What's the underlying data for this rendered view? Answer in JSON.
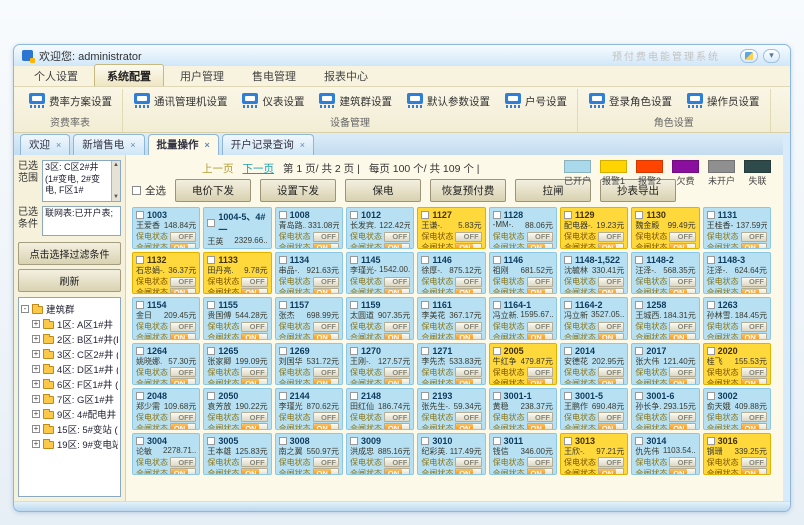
{
  "window": {
    "title": "欢迎您: administrator",
    "watermark": "预付费电能管理系统",
    "collapse_glyph": "▾"
  },
  "menu": {
    "items": [
      {
        "label": "个人设置",
        "active": false
      },
      {
        "label": "系统配置",
        "active": true
      },
      {
        "label": "用户管理",
        "active": false
      },
      {
        "label": "售电管理",
        "active": false
      },
      {
        "label": "报表中心",
        "active": false
      }
    ]
  },
  "ribbon": {
    "groups": [
      {
        "label": "资费率表",
        "items": [
          "费率方案设置"
        ]
      },
      {
        "label": "设备管理",
        "items": [
          "通讯管理机设置",
          "仪表设置",
          "建筑群设置",
          "默认参数设置",
          "户号设置"
        ]
      },
      {
        "label": "角色设置",
        "items": [
          "登录角色设置",
          "操作员设置"
        ]
      }
    ]
  },
  "tabs": [
    {
      "label": "欢迎",
      "active": false
    },
    {
      "label": "新增售电",
      "active": false
    },
    {
      "label": "批量操作",
      "active": true
    },
    {
      "label": "开户记录查询",
      "active": false
    }
  ],
  "tab_close_glyph": "×",
  "sidebar": {
    "range_label": "已选范围",
    "range_value": "3区: C区2#井 (1#变电, 2#变电, F区1#",
    "criteria_label": "已选条件",
    "criteria_value": "联网表:已开户表;",
    "filter_button": "点击选择过滤条件",
    "refresh_button": "刷新",
    "scroll_up": "▲",
    "scroll_down": "▼",
    "tree_root": "建筑群",
    "tree_items": [
      "1区: A区1#井",
      "2区: B区1#井(B区1#",
      "3区: C区2#井 (1#变",
      "4区: D区1#井 (D区1",
      "6区: F区1#井 (F区1#",
      "7区: G区1#井",
      "9区: 4#配电井 (4#配",
      "15区: 5#变站 (3#变",
      "19区: 9#变电站 (2#"
    ]
  },
  "toolbar": {
    "pagination": {
      "prev": "上一页",
      "next": "下一页",
      "page_info": "第 1 页/ 共 2 页 |",
      "per_page_info": "每页 100 个/ 共 109 个 |"
    },
    "select_all_label": "全选",
    "buttons": [
      "电价下发",
      "设置下发",
      "保电",
      "恢复预付费",
      "拉闸",
      "抄表导出"
    ],
    "legend": [
      {
        "label": "已开户",
        "color": "#a9d9ea"
      },
      {
        "label": "报警1",
        "color": "#ffd400"
      },
      {
        "label": "报警2",
        "color": "#ff4400"
      },
      {
        "label": "欠费",
        "color": "#8a0f9e"
      },
      {
        "label": "未开户",
        "color": "#8f8f8f"
      },
      {
        "label": "失联",
        "color": "#2e4a4a"
      }
    ]
  },
  "cards": {
    "supply_label": "保电状态",
    "switch_label": "合闸状态",
    "off_label": "OFF",
    "on_label": "ON",
    "items": [
      {
        "id": "1003",
        "name": "王爱香",
        "amt": "148.84元",
        "status": "open"
      },
      {
        "id": "1004-5、4#一",
        "name": "王英",
        "amt": "2329.66..",
        "status": "open"
      },
      {
        "id": "1008",
        "name": "青岛路..",
        "amt": "331.08元",
        "status": "open"
      },
      {
        "id": "1012",
        "name": "长发宾..",
        "amt": "122.42元",
        "status": "open"
      },
      {
        "id": "1127",
        "name": "王谦-.",
        "amt": "5.83元",
        "status": "alarm"
      },
      {
        "id": "1128",
        "name": "-MM-.",
        "amt": "88.06元",
        "status": "open"
      },
      {
        "id": "1129",
        "name": "配电器-.",
        "amt": "19.23元",
        "status": "alarm"
      },
      {
        "id": "1130",
        "name": "魏金殿",
        "amt": "99.49元",
        "status": "alarm"
      },
      {
        "id": "1131",
        "name": "王桂香-.",
        "amt": "137.59元",
        "status": "open"
      },
      {
        "id": "1132",
        "name": "石忠娟-.",
        "amt": "36.37元",
        "status": "alarm"
      },
      {
        "id": "1133",
        "name": "田丹亮.",
        "amt": "9.78元",
        "status": "alarm"
      },
      {
        "id": "1134",
        "name": "串品-.",
        "amt": "921.63元",
        "status": "open"
      },
      {
        "id": "1145",
        "name": "李瑾光-.",
        "amt": "1542.00..",
        "status": "open"
      },
      {
        "id": "1146",
        "name": "徐厚-.",
        "amt": "875.12元",
        "status": "open"
      },
      {
        "id": "1146",
        "name": "祖刚",
        "amt": "681.52元",
        "status": "open"
      },
      {
        "id": "1148-1,522",
        "name": "沈毓林",
        "amt": "330.41元",
        "status": "open"
      },
      {
        "id": "1148-2",
        "name": "汪泽-.",
        "amt": "568.35元",
        "status": "open"
      },
      {
        "id": "1148-3",
        "name": "汪泽-.",
        "amt": "624.64元",
        "status": "open"
      },
      {
        "id": "1154",
        "name": "金日",
        "amt": "209.45元",
        "status": "open"
      },
      {
        "id": "1155",
        "name": "贵国傅",
        "amt": "544.28元",
        "status": "open"
      },
      {
        "id": "1157",
        "name": "张杰",
        "amt": "698.99元",
        "status": "open"
      },
      {
        "id": "1159",
        "name": "太圆道",
        "amt": "907.35元",
        "status": "open"
      },
      {
        "id": "1161",
        "name": "李美花",
        "amt": "367.17元",
        "status": "open"
      },
      {
        "id": "1164-1",
        "name": "冯立新.",
        "amt": "1595.67..",
        "status": "open"
      },
      {
        "id": "1164-2",
        "name": "冯立新",
        "amt": "3527.05..",
        "status": "open"
      },
      {
        "id": "1258",
        "name": "王城西.",
        "amt": "184.31元",
        "status": "open"
      },
      {
        "id": "1263",
        "name": "孙林雪.",
        "amt": "184.45元",
        "status": "open"
      },
      {
        "id": "1264",
        "name": "姚晓娜.",
        "amt": "57.30元",
        "status": "open"
      },
      {
        "id": "1265",
        "name": "张家卿",
        "amt": "199.09元",
        "status": "open"
      },
      {
        "id": "1269",
        "name": "刘国华",
        "amt": "531.72元",
        "status": "open"
      },
      {
        "id": "1270",
        "name": "王刚-.",
        "amt": "127.57元",
        "status": "open"
      },
      {
        "id": "1271",
        "name": "李先杰",
        "amt": "533.83元",
        "status": "open"
      },
      {
        "id": "2005",
        "name": "牛红争",
        "amt": "479.87元",
        "status": "alarm"
      },
      {
        "id": "2014",
        "name": "安德花",
        "amt": "202.95元",
        "status": "open"
      },
      {
        "id": "2017",
        "name": "张大伟",
        "amt": "121.40元",
        "status": "open"
      },
      {
        "id": "2020",
        "name": "桂飞",
        "amt": "155.53元",
        "status": "alarm"
      },
      {
        "id": "2048",
        "name": "郑少需",
        "amt": "109.68元",
        "status": "open"
      },
      {
        "id": "2050",
        "name": "袁芳放",
        "amt": "190.22元",
        "status": "open"
      },
      {
        "id": "2144",
        "name": "李瑾光",
        "amt": "870.62元",
        "status": "open"
      },
      {
        "id": "2148",
        "name": "田红仙",
        "amt": "186.74元",
        "status": "open"
      },
      {
        "id": "2193",
        "name": "张先生-.",
        "amt": "59.34元",
        "status": "open"
      },
      {
        "id": "3001-1",
        "name": "黄稳",
        "amt": "238.37元",
        "status": "open"
      },
      {
        "id": "3001-5",
        "name": "王鹏作",
        "amt": "690.48元",
        "status": "open"
      },
      {
        "id": "3001-6",
        "name": "孙长争.",
        "amt": "293.15元",
        "status": "open"
      },
      {
        "id": "3002",
        "name": "俞天娥",
        "amt": "409.88元",
        "status": "open"
      },
      {
        "id": "3004",
        "name": "论敏",
        "amt": "2278.71..",
        "status": "open"
      },
      {
        "id": "3005",
        "name": "王本雄",
        "amt": "125.83元",
        "status": "open"
      },
      {
        "id": "3008",
        "name": "南之翼",
        "amt": "550.97元",
        "status": "open"
      },
      {
        "id": "3009",
        "name": "洪成忠",
        "amt": "885.16元",
        "status": "open"
      },
      {
        "id": "3010",
        "name": "纪彩英.",
        "amt": "117.49元",
        "status": "open"
      },
      {
        "id": "3011",
        "name": "钱信",
        "amt": "346.00元",
        "status": "open"
      },
      {
        "id": "3013",
        "name": "王欣-.",
        "amt": "97.21元",
        "status": "alarm"
      },
      {
        "id": "3014",
        "name": "仇先伟",
        "amt": "1103.54..",
        "status": "open"
      },
      {
        "id": "3016",
        "name": "钢珊",
        "amt": "339.25元",
        "status": "alarm"
      }
    ]
  }
}
